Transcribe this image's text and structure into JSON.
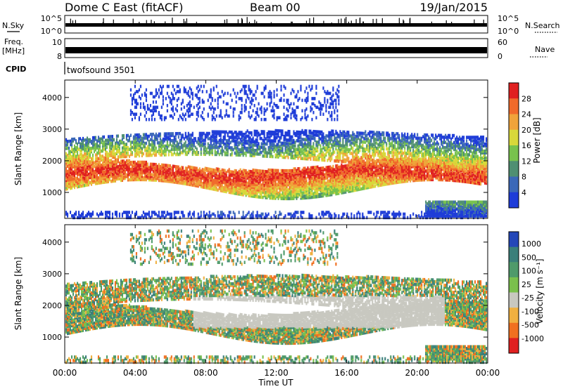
{
  "header": {
    "station": "Dome C East (fitACF)",
    "beam": "Beam 00",
    "date": "19/Jan/2015"
  },
  "top_panels": {
    "nsky_label": "N.Sky",
    "nsky_ticks": [
      "10^5",
      "10^0"
    ],
    "nsearch_label": "N.Search",
    "freq_label_1": "Freq.",
    "freq_label_2": "[MHz]",
    "freq_ticks": [
      "10",
      "8"
    ],
    "nave_ticks": [
      "60",
      "0"
    ],
    "nave_label": "Nave",
    "cpid_label": "CPID",
    "cpid_text": "twofsound 3501"
  },
  "chart_data": [
    {
      "type": "heatmap",
      "title": "",
      "ylabel": "Slant Range [km]",
      "xlabel": "Time UT",
      "y_ticks": [
        "1000",
        "2000",
        "3000",
        "4000"
      ],
      "ylim": [
        180,
        4550
      ],
      "x_ticks": [
        "00:00",
        "04:00",
        "08:00",
        "12:00",
        "16:00",
        "20:00",
        "00:00"
      ],
      "colorbar_label": "Power [dB]",
      "colorbar_ticks": [
        "4",
        "8",
        "12",
        "16",
        "20",
        "24",
        "28"
      ],
      "colors": [
        "#1e3cd8",
        "#3b68b8",
        "#4f8f72",
        "#78c24d",
        "#d8d83a",
        "#f0a33a",
        "#f06a2a",
        "#e02020"
      ]
    },
    {
      "type": "heatmap",
      "title": "",
      "ylabel": "Slant Range [km]",
      "xlabel": "Time UT",
      "y_ticks": [
        "1000",
        "2000",
        "3000",
        "4000"
      ],
      "ylim": [
        180,
        4550
      ],
      "x_ticks": [
        "00:00",
        "04:00",
        "08:00",
        "12:00",
        "16:00",
        "20:00",
        "00:00"
      ],
      "colorbar_label": "Velocity [m s⁻¹]",
      "colorbar_ticks": [
        "1000",
        "500",
        "100",
        "25",
        "-25",
        "-100",
        "-500",
        "-1000"
      ],
      "colors": [
        "#2447b8",
        "#3a7f7a",
        "#4f9a6a",
        "#7ac04c",
        "#c8c8c0",
        "#f0b040",
        "#f07020",
        "#e02020"
      ]
    }
  ]
}
